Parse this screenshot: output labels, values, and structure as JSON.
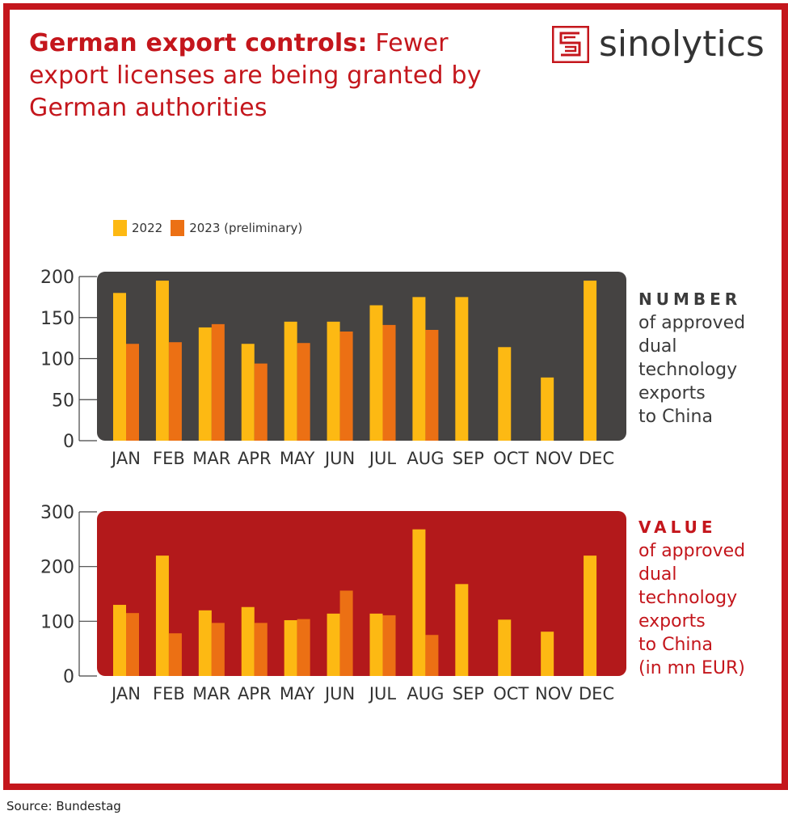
{
  "title": {
    "bold": "German export controls:",
    "rest": "Fewer export licenses are being granted by German authorities"
  },
  "brand": {
    "name": "sinolytics",
    "color": "#c4161c"
  },
  "legend": [
    {
      "label": "2022",
      "color": "#fdb913"
    },
    {
      "label": "2023 (preliminary)",
      "color": "#ec7014"
    }
  ],
  "chart_data": [
    {
      "type": "bar",
      "categories": [
        "JAN",
        "FEB",
        "MAR",
        "APR",
        "MAY",
        "JUN",
        "JUL",
        "AUG",
        "SEP",
        "OCT",
        "NOV",
        "DEC"
      ],
      "series": [
        {
          "name": "2022",
          "values": [
            180,
            195,
            138,
            118,
            145,
            145,
            165,
            175,
            175,
            114,
            77,
            195
          ]
        },
        {
          "name": "2023 (preliminary)",
          "values": [
            118,
            120,
            142,
            94,
            119,
            133,
            141,
            135,
            null,
            null,
            null,
            null
          ]
        }
      ],
      "ylim": [
        0,
        200
      ],
      "yticks": [
        0,
        50,
        100,
        150,
        200
      ],
      "background": "#454342",
      "label_caps": "NUMBER",
      "label_rest": [
        "of approved",
        "dual",
        "technology",
        "exports",
        "to China"
      ]
    },
    {
      "type": "bar",
      "categories": [
        "JAN",
        "FEB",
        "MAR",
        "APR",
        "MAY",
        "JUN",
        "JUL",
        "AUG",
        "SEP",
        "OCT",
        "NOV",
        "DEC"
      ],
      "series": [
        {
          "name": "2022",
          "values": [
            130,
            220,
            120,
            126,
            102,
            114,
            114,
            268,
            168,
            103,
            81,
            220
          ]
        },
        {
          "name": "2023 (preliminary)",
          "values": [
            115,
            78,
            97,
            97,
            104,
            156,
            111,
            75,
            null,
            null,
            null,
            null
          ]
        }
      ],
      "ylim": [
        0,
        300
      ],
      "yticks": [
        0,
        100,
        200,
        300
      ],
      "background": "#b3191b",
      "label_caps": "VALUE",
      "label_rest": [
        "of approved",
        "dual",
        "technology",
        "exports",
        "to China",
        "(in mn EUR)"
      ]
    }
  ],
  "source": "Source: Bundestag"
}
